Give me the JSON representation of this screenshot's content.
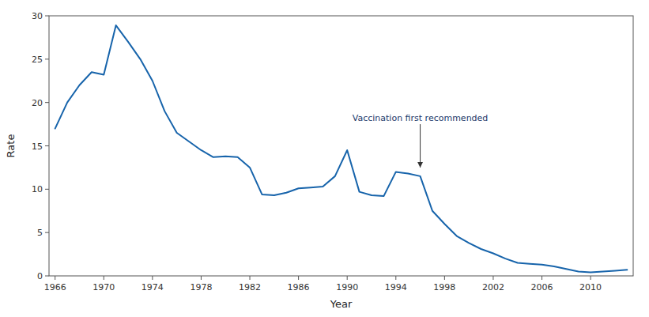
{
  "chart_data": {
    "type": "line",
    "x": [
      1966,
      1967,
      1968,
      1969,
      1970,
      1971,
      1972,
      1973,
      1974,
      1975,
      1976,
      1977,
      1978,
      1979,
      1980,
      1981,
      1982,
      1983,
      1984,
      1985,
      1986,
      1987,
      1988,
      1989,
      1990,
      1991,
      1992,
      1993,
      1994,
      1995,
      1996,
      1997,
      1998,
      1999,
      2000,
      2001,
      2002,
      2003,
      2004,
      2005,
      2006,
      2007,
      2008,
      2009,
      2010,
      2011,
      2012,
      2013
    ],
    "values": [
      17.0,
      20.0,
      22.0,
      23.5,
      23.2,
      28.9,
      27.0,
      25.0,
      22.5,
      19.0,
      16.5,
      15.5,
      14.5,
      13.7,
      13.8,
      13.7,
      12.5,
      9.4,
      9.3,
      9.6,
      10.1,
      10.2,
      10.3,
      11.5,
      14.5,
      9.7,
      9.3,
      9.2,
      12.0,
      11.8,
      11.5,
      7.5,
      6.0,
      4.6,
      3.8,
      3.1,
      2.6,
      2.0,
      1.5,
      1.4,
      1.3,
      1.1,
      0.8,
      0.5,
      0.4,
      0.5,
      0.6,
      0.7
    ],
    "color": "#1764ab",
    "xlabel": "Year",
    "ylabel": "Rate",
    "xlim": [
      1965.5,
      2013.5
    ],
    "ylim": [
      0,
      30
    ],
    "xticks": [
      1966,
      1970,
      1974,
      1978,
      1982,
      1986,
      1990,
      1994,
      1998,
      2002,
      2006,
      2010
    ],
    "yticks": [
      0,
      5,
      10,
      15,
      20,
      25,
      30
    ],
    "grid": false,
    "annotations": [
      {
        "text": "Vaccination first recommended",
        "x": 1996,
        "y": 12.5,
        "text_y": 17.5
      }
    ]
  }
}
